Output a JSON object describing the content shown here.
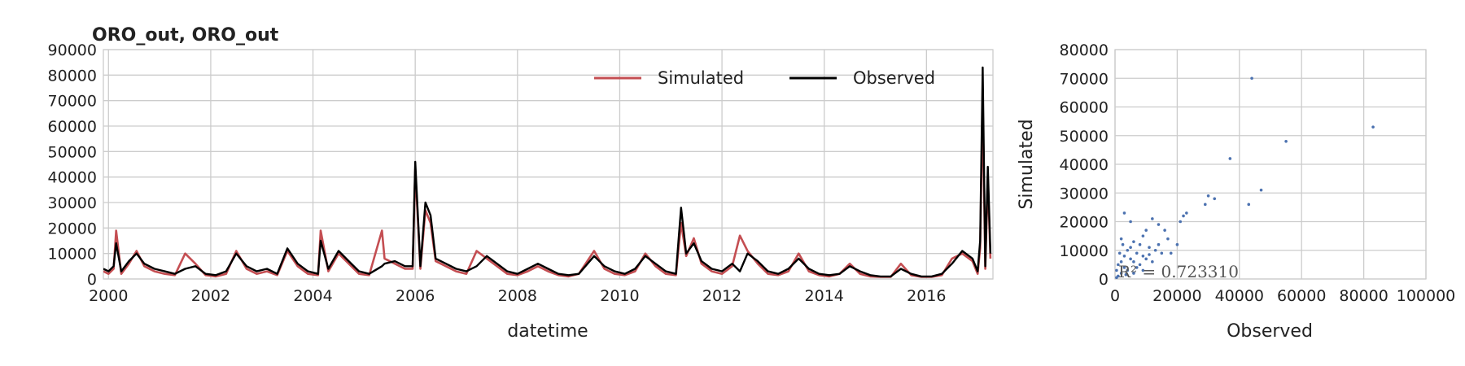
{
  "chart_data": [
    {
      "type": "line",
      "title": "ORO_out, ORO_out",
      "xlabel": "datetime",
      "x": [
        1999.9,
        2000.0,
        2000.1,
        2000.15,
        2000.25,
        2000.4,
        2000.55,
        2000.7,
        2000.9,
        2001.1,
        2001.3,
        2001.5,
        2001.7,
        2001.9,
        2002.1,
        2002.3,
        2002.5,
        2002.7,
        2002.9,
        2003.1,
        2003.3,
        2003.5,
        2003.7,
        2003.9,
        2004.1,
        2004.15,
        2004.3,
        2004.5,
        2004.7,
        2004.9,
        2005.1,
        2005.35,
        2005.4,
        2005.6,
        2005.8,
        2005.95,
        2006.0,
        2006.1,
        2006.2,
        2006.3,
        2006.4,
        2006.6,
        2006.8,
        2007.0,
        2007.2,
        2007.4,
        2007.6,
        2007.8,
        2008.0,
        2008.2,
        2008.4,
        2008.6,
        2008.8,
        2009.0,
        2009.2,
        2009.5,
        2009.7,
        2009.9,
        2010.1,
        2010.3,
        2010.5,
        2010.7,
        2010.9,
        2011.1,
        2011.2,
        2011.3,
        2011.45,
        2011.6,
        2011.8,
        2012.0,
        2012.2,
        2012.35,
        2012.5,
        2012.7,
        2012.9,
        2013.1,
        2013.3,
        2013.5,
        2013.7,
        2013.9,
        2014.1,
        2014.3,
        2014.5,
        2014.7,
        2014.9,
        2015.1,
        2015.3,
        2015.5,
        2015.7,
        2015.9,
        2016.1,
        2016.3,
        2016.5,
        2016.7,
        2016.9,
        2017.0,
        2017.05,
        2017.1,
        2017.15,
        2017.2,
        2017.25
      ],
      "series": [
        {
          "name": "Simulated",
          "color": "#c44e52",
          "values": [
            3000,
            2000,
            4000,
            19000,
            2000,
            6000,
            11000,
            5000,
            3000,
            2000,
            1500,
            10000,
            6000,
            1500,
            1000,
            2000,
            11000,
            4000,
            2000,
            3000,
            1500,
            11000,
            5000,
            2000,
            1500,
            19000,
            3000,
            10000,
            6000,
            2000,
            1500,
            19000,
            8000,
            6000,
            4000,
            4000,
            43000,
            4000,
            27000,
            22000,
            7000,
            5000,
            3000,
            2000,
            11000,
            8000,
            5000,
            2000,
            1500,
            3000,
            5000,
            3000,
            1500,
            1000,
            2000,
            11000,
            4000,
            2000,
            1500,
            3000,
            10000,
            5000,
            2000,
            1500,
            22000,
            9000,
            16000,
            6000,
            3000,
            2000,
            5000,
            17000,
            11000,
            6000,
            2000,
            1500,
            3000,
            10000,
            3000,
            1500,
            1000,
            2000,
            6000,
            2000,
            1000,
            800,
            800,
            6000,
            1500,
            800,
            800,
            1500,
            8000,
            10000,
            7000,
            2000,
            12000,
            70000,
            4000,
            40000,
            8000
          ]
        },
        {
          "name": "Observed",
          "color": "#000000",
          "values": [
            4000,
            3000,
            5000,
            14000,
            3000,
            7000,
            10000,
            6000,
            4000,
            3000,
            2000,
            4000,
            5000,
            2000,
            1500,
            3000,
            10000,
            5000,
            3000,
            4000,
            2000,
            12000,
            6000,
            3000,
            2000,
            15000,
            4000,
            11000,
            7000,
            3000,
            2000,
            5000,
            6000,
            7000,
            5000,
            5000,
            46000,
            5000,
            30000,
            25000,
            8000,
            6000,
            4000,
            3000,
            5000,
            9000,
            6000,
            3000,
            2000,
            4000,
            6000,
            4000,
            2000,
            1500,
            2000,
            9000,
            5000,
            3000,
            2000,
            4000,
            9000,
            6000,
            3000,
            2000,
            28000,
            10000,
            14000,
            7000,
            4000,
            3000,
            6000,
            3000,
            10000,
            7000,
            3000,
            2000,
            4000,
            8000,
            4000,
            2000,
            1500,
            2000,
            5000,
            3000,
            1500,
            1000,
            1000,
            4000,
            2000,
            1000,
            1000,
            2000,
            6000,
            11000,
            8000,
            3000,
            15000,
            83000,
            5000,
            44000,
            10000
          ]
        }
      ],
      "xlim": [
        1999.9,
        2017.3
      ],
      "xticks": [
        2000,
        2002,
        2004,
        2006,
        2008,
        2010,
        2012,
        2014,
        2016
      ],
      "ylim": [
        0,
        90000
      ],
      "yticks": [
        0,
        10000,
        20000,
        30000,
        40000,
        50000,
        60000,
        70000,
        80000,
        90000
      ],
      "grid": true,
      "legend": "upper right"
    },
    {
      "type": "scatter",
      "xlabel": "Observed",
      "ylabel": "Simulated",
      "annotation": "R² = 0.723310",
      "color": "#4c72b0",
      "x": [
        44000,
        83000,
        55000,
        37000,
        47000,
        30000,
        32000,
        43000,
        29000,
        22000,
        23000,
        21000,
        3000,
        12000,
        14000,
        5000,
        10000,
        16000,
        9000,
        20000,
        2000,
        6000,
        8000,
        11000,
        13000,
        15000,
        4000,
        7000,
        9000,
        3000,
        5000,
        2000,
        6000,
        1000,
        3000,
        8000,
        10000,
        4000,
        2000,
        1000,
        500,
        6000,
        12000,
        18000,
        7000,
        1500,
        5000,
        9000,
        3500,
        11000,
        14000,
        17000,
        2500,
        500
      ],
      "values": [
        70000,
        53000,
        48000,
        42000,
        31000,
        29000,
        28000,
        26000,
        26000,
        22000,
        23000,
        20000,
        23000,
        21000,
        19000,
        20000,
        17000,
        17000,
        15000,
        12000,
        14000,
        13000,
        12000,
        11000,
        10000,
        9000,
        10000,
        9000,
        8000,
        8000,
        7000,
        6000,
        6000,
        5000,
        4000,
        5000,
        7000,
        3000,
        2000,
        1000,
        3000,
        2000,
        6000,
        9000,
        4000,
        9000,
        11000,
        3000,
        1500,
        8500,
        12000,
        14000,
        12000,
        500
      ],
      "xlim": [
        0,
        100000
      ],
      "xticks": [
        0,
        20000,
        40000,
        60000,
        80000,
        100000
      ],
      "ylim": [
        0,
        80000
      ],
      "yticks": [
        0,
        10000,
        20000,
        30000,
        40000,
        50000,
        60000,
        70000,
        80000
      ],
      "grid": true
    }
  ]
}
